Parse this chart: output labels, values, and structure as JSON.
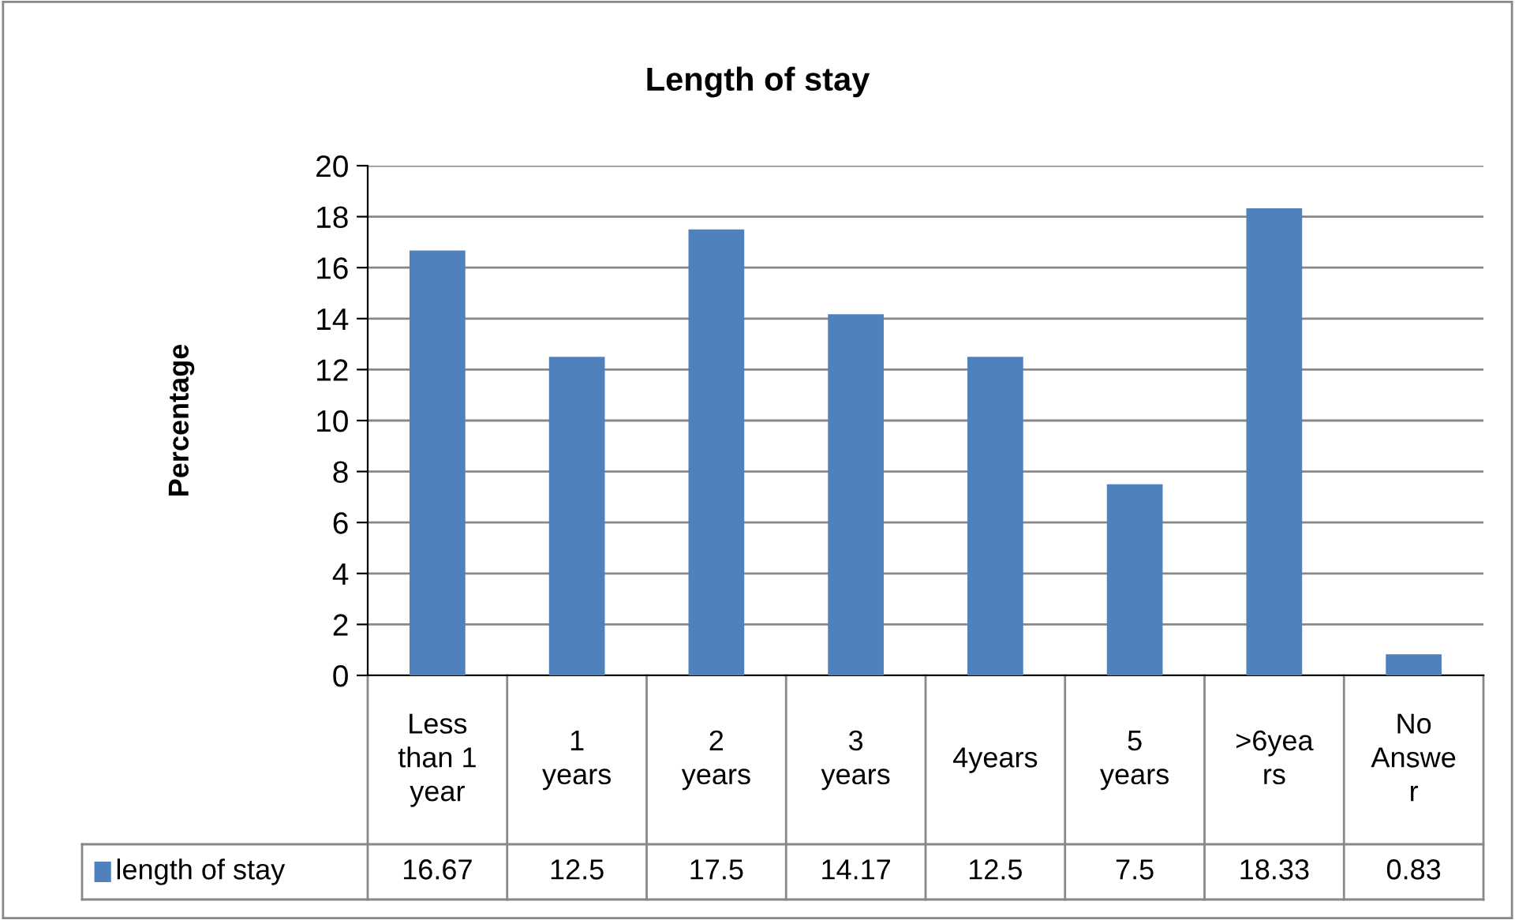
{
  "chart_data": {
    "type": "bar",
    "title": "Length of stay",
    "ylabel": "Percentage",
    "categories": [
      "Less\nthan 1\nyear",
      "1\nyears",
      "2\nyears",
      "3\nyears",
      "4years",
      "5\nyears",
      ">6yea\nrs",
      "No\nAnswe\nr"
    ],
    "series": [
      {
        "name": "length of stay",
        "color": "#4f81bd",
        "values": [
          16.67,
          12.5,
          17.5,
          14.17,
          12.5,
          7.5,
          18.33,
          0.83
        ]
      }
    ],
    "ylim": [
      0,
      20
    ],
    "yticks": [
      0,
      2,
      4,
      6,
      8,
      10,
      12,
      14,
      16,
      18,
      20
    ],
    "grid": "y",
    "legend": "bottom",
    "data_labels": true
  }
}
